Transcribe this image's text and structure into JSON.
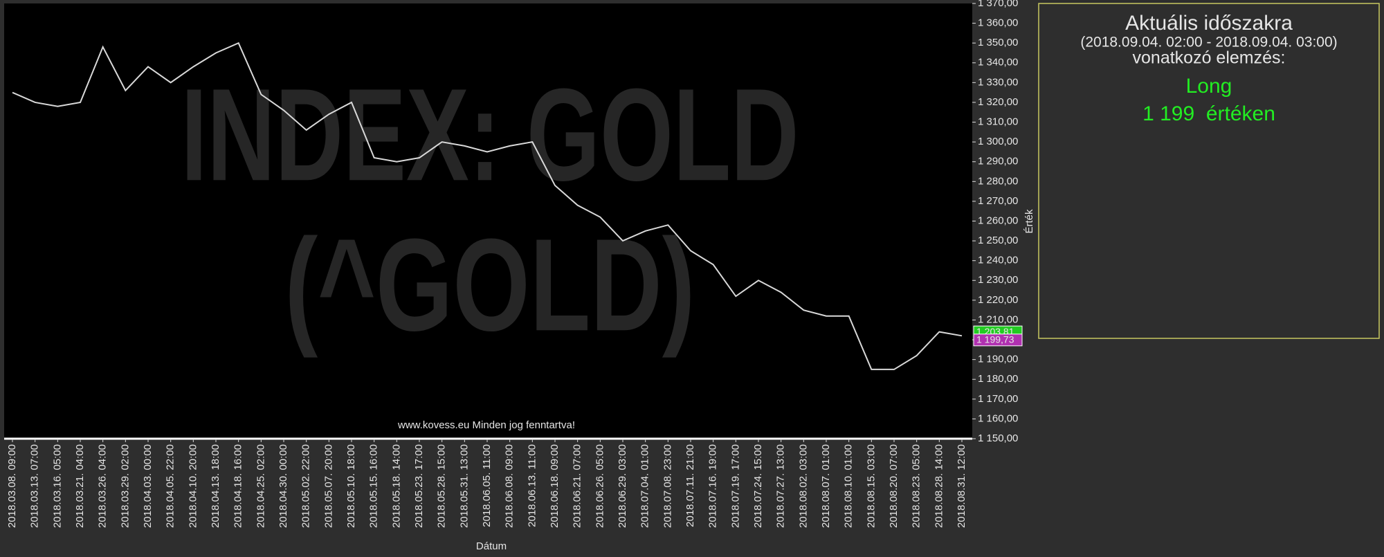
{
  "chart_data": {
    "type": "line",
    "watermark": [
      "INDEX: GOLD",
      "(^GOLD)"
    ],
    "footer": "www.kovess.eu Minden jog fenntartva!",
    "xlabel": "Dátum",
    "ylabel": "Érték",
    "color": "#d9d9d9",
    "grid": false,
    "categories": [
      "2018.03.08. 09:00",
      "2018.03.13. 07:00",
      "2018.03.16. 05:00",
      "2018.03.21. 04:00",
      "2018.03.26. 04:00",
      "2018.03.29. 02:00",
      "2018.04.03. 00:00",
      "2018.04.05. 22:00",
      "2018.04.10. 20:00",
      "2018.04.13. 18:00",
      "2018.04.18. 16:00",
      "2018.04.25. 02:00",
      "2018.04.30. 00:00",
      "2018.05.02. 22:00",
      "2018.05.07. 20:00",
      "2018.05.10. 18:00",
      "2018.05.15. 16:00",
      "2018.05.18. 14:00",
      "2018.05.23. 17:00",
      "2018.05.28. 15:00",
      "2018.05.31. 13:00",
      "2018.06.05. 11:00",
      "2018.06.08. 09:00",
      "2018.06.13. 11:00",
      "2018.06.18. 09:00",
      "2018.06.21. 07:00",
      "2018.06.26. 05:00",
      "2018.06.29. 03:00",
      "2018.07.04. 01:00",
      "2018.07.08. 23:00",
      "2018.07.11. 21:00",
      "2018.07.16. 19:00",
      "2018.07.19. 17:00",
      "2018.07.24. 15:00",
      "2018.07.27. 13:00",
      "2018.08.02. 03:00",
      "2018.08.07. 01:00",
      "2018.08.10. 01:00",
      "2018.08.15. 03:00",
      "2018.08.20. 07:00",
      "2018.08.23. 05:00",
      "2018.08.28. 14:00",
      "2018.08.31. 12:00"
    ],
    "values": [
      1325,
      1320,
      1318,
      1320,
      1348,
      1326,
      1338,
      1330,
      1338,
      1345,
      1350,
      1324,
      1316,
      1306,
      1314,
      1320,
      1292,
      1290,
      1292,
      1300,
      1298,
      1295,
      1298,
      1300,
      1278,
      1268,
      1262,
      1250,
      1255,
      1258,
      1245,
      1238,
      1222,
      1230,
      1224,
      1215,
      1212,
      1212,
      1185,
      1185,
      1192,
      1204,
      1202
    ],
    "ylim": [
      1150,
      1370
    ],
    "yticks": [
      {
        "value": 1150,
        "label": "1 150,00"
      },
      {
        "value": 1160,
        "label": "1 160,00"
      },
      {
        "value": 1170,
        "label": "1 170,00"
      },
      {
        "value": 1180,
        "label": "1 180,00"
      },
      {
        "value": 1190,
        "label": "1 190,00"
      },
      {
        "value": 1200,
        "label": "1 200,00"
      },
      {
        "value": 1210,
        "label": "1 210,00"
      },
      {
        "value": 1220,
        "label": "1 220,00"
      },
      {
        "value": 1230,
        "label": "1 230,00"
      },
      {
        "value": 1240,
        "label": "1 240,00"
      },
      {
        "value": 1250,
        "label": "1 250,00"
      },
      {
        "value": 1260,
        "label": "1 260,00"
      },
      {
        "value": 1270,
        "label": "1 270,00"
      },
      {
        "value": 1280,
        "label": "1 280,00"
      },
      {
        "value": 1290,
        "label": "1 290,00"
      },
      {
        "value": 1300,
        "label": "1 300,00"
      },
      {
        "value": 1310,
        "label": "1 310,00"
      },
      {
        "value": 1320,
        "label": "1 320,00"
      },
      {
        "value": 1330,
        "label": "1 330,00"
      },
      {
        "value": 1340,
        "label": "1 340,00"
      },
      {
        "value": 1350,
        "label": "1 350,00"
      },
      {
        "value": 1360,
        "label": "1 360,00"
      },
      {
        "value": 1370,
        "label": "1 370,00"
      }
    ],
    "price_markers": [
      {
        "value": 1203.81,
        "label": "1 203,81",
        "color": "#22cc22"
      },
      {
        "value": 1199.73,
        "label": "1 199,73",
        "color": "#b030b0"
      }
    ]
  },
  "panel": {
    "title": "Aktuális időszakra",
    "period": "(2018.09.04. 02:00 - 2018.09.04. 03:00)",
    "subtitle": "vonatkozó elemzés:",
    "signal": "Long",
    "price_text": "1 199  értéken"
  }
}
